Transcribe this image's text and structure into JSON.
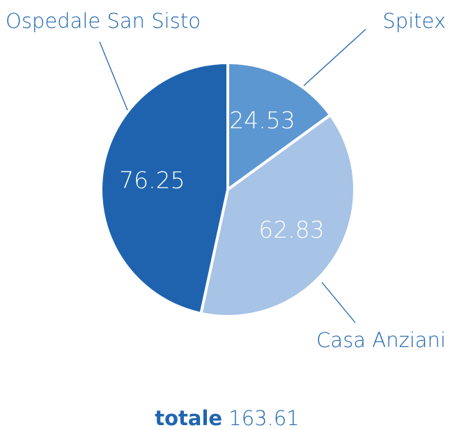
{
  "chart_data": {
    "type": "pie",
    "categories": [
      "Spitex",
      "Casa Anziani",
      "Ospedale San Sisto"
    ],
    "values": [
      24.53,
      62.83,
      76.25
    ],
    "colors": [
      "#5c97d1",
      "#a7c3e6",
      "#1f63ae"
    ],
    "total_label": "totale",
    "total": 163.61
  }
}
